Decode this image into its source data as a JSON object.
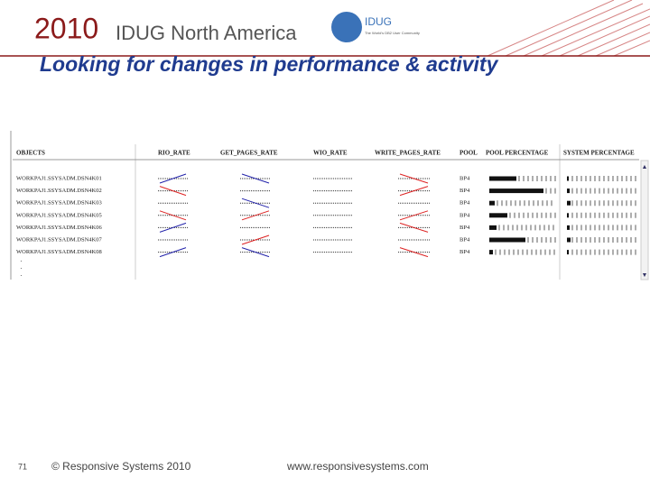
{
  "header": {
    "year": "2010",
    "event": "IDUG North America",
    "logo": "IDUG",
    "logo_tagline": "The World's DB2 User Community"
  },
  "slide": {
    "title": "Looking for changes in performance & activity"
  },
  "table": {
    "columns": [
      "OBJECTS",
      "RIO_RATE",
      "GET_PAGES_RATE",
      "WIO_RATE",
      "WRITE_PAGES_RATE",
      "POOL",
      "POOL PERCENTAGE",
      "SYSTEM PERCENTAGE"
    ],
    "rows": [
      [
        "WORKPAJ1.SSYSADM.DSN4K01",
        "BP4"
      ],
      [
        "WORKPAJ1.SSYSADM.DSN4K02",
        "BP4"
      ],
      [
        "WORKPAJ1.SSYSADM.DSN4K03",
        "BP4"
      ],
      [
        "WORKPAJ1.SSYSADM.DSN4K05",
        "BP4"
      ],
      [
        "WORKPAJ1.SSYSADM.DSN4K06",
        "BP4"
      ],
      [
        "WORKPAJ1.SSYSADM.DSN4K07",
        "BP4"
      ],
      [
        "WORKPAJ1.SSYSADM.DSN4K08",
        "BP4"
      ]
    ]
  },
  "footer": {
    "page": "71",
    "copyright": "© Responsive Systems 2010",
    "url": "www.responsivesystems.com"
  }
}
